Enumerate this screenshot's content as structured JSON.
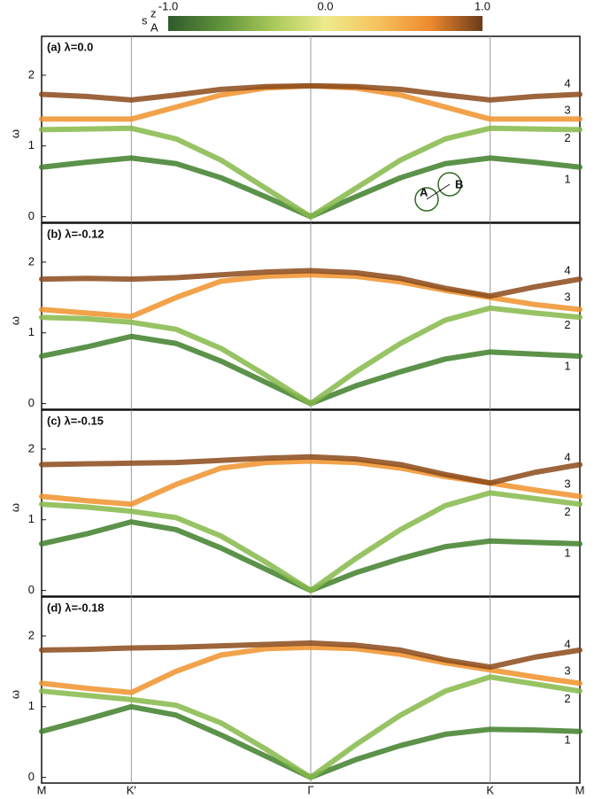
{
  "colorbar": {
    "label": "s",
    "label_sub": "A",
    "label_sup": "z",
    "lim": [
      -1,
      1
    ],
    "ticks": [
      {
        "value": -1,
        "label": "-1.0"
      },
      {
        "value": 0,
        "label": "0.0"
      },
      {
        "value": 1,
        "label": "1.0"
      }
    ],
    "colors": [
      "#2f5a2c",
      "#5f923a",
      "#a9c85a",
      "#eeeb8c",
      "#f6c25e",
      "#ee8a2e",
      "#6b3a1a"
    ]
  },
  "chart_data": [
    {
      "type": "line",
      "title": "(a) λ=0.0",
      "y_label": "ω",
      "annotations": [
        "A",
        "B"
      ],
      "x": [
        0,
        0.5,
        1,
        1.5,
        2,
        2.5,
        3,
        3.5,
        4,
        4.5,
        5,
        5.5,
        6
      ],
      "xlim": [
        0,
        6
      ],
      "ylim": [
        -0.08,
        2.55
      ],
      "yticks": [
        0,
        1,
        2
      ],
      "series": [
        {
          "name": "1",
          "color": "#3f7f2a",
          "values": [
            0.7,
            0.77,
            0.83,
            0.75,
            0.55,
            0.28,
            0,
            0.28,
            0.55,
            0.75,
            0.83,
            0.77,
            0.7
          ]
        },
        {
          "name": "2",
          "color": "#86b84a",
          "values": [
            1.23,
            1.24,
            1.25,
            1.1,
            0.8,
            0.4,
            0,
            0.4,
            0.8,
            1.1,
            1.25,
            1.24,
            1.23
          ]
        },
        {
          "name": "3",
          "color": "#f0922b",
          "values": [
            1.38,
            1.38,
            1.38,
            1.55,
            1.72,
            1.82,
            1.85,
            1.82,
            1.72,
            1.55,
            1.38,
            1.38,
            1.38
          ]
        },
        {
          "name": "4",
          "color": "#8b4a1a",
          "values": [
            1.73,
            1.7,
            1.65,
            1.72,
            1.8,
            1.84,
            1.85,
            1.84,
            1.8,
            1.72,
            1.65,
            1.7,
            1.73
          ]
        }
      ]
    },
    {
      "type": "line",
      "title": "(b) λ=-0.12",
      "y_label": "ω",
      "x": [
        0,
        0.5,
        1,
        1.5,
        2,
        2.5,
        3,
        3.5,
        4,
        4.5,
        5,
        5.5,
        6
      ],
      "xlim": [
        0,
        6
      ],
      "ylim": [
        -0.08,
        2.55
      ],
      "yticks": [
        0,
        1,
        2
      ],
      "series": [
        {
          "name": "1",
          "color": "#3f7f2a",
          "values": [
            0.67,
            0.8,
            0.95,
            0.85,
            0.6,
            0.3,
            0,
            0.25,
            0.45,
            0.63,
            0.73,
            0.7,
            0.67
          ]
        },
        {
          "name": "2",
          "color": "#86b84a",
          "values": [
            1.22,
            1.2,
            1.15,
            1.05,
            0.78,
            0.4,
            0,
            0.45,
            0.85,
            1.18,
            1.35,
            1.28,
            1.22
          ]
        },
        {
          "name": "3",
          "color": "#f0922b",
          "values": [
            1.33,
            1.28,
            1.23,
            1.5,
            1.73,
            1.8,
            1.82,
            1.8,
            1.72,
            1.6,
            1.5,
            1.4,
            1.33
          ]
        },
        {
          "name": "4",
          "color": "#8b4a1a",
          "values": [
            1.76,
            1.77,
            1.76,
            1.78,
            1.82,
            1.86,
            1.88,
            1.85,
            1.77,
            1.63,
            1.52,
            1.65,
            1.76
          ]
        }
      ]
    },
    {
      "type": "line",
      "title": "(c) λ=-0.15",
      "y_label": "ω",
      "x": [
        0,
        0.5,
        1,
        1.5,
        2,
        2.5,
        3,
        3.5,
        4,
        4.5,
        5,
        5.5,
        6
      ],
      "xlim": [
        0,
        6
      ],
      "ylim": [
        -0.08,
        2.55
      ],
      "yticks": [
        0,
        1,
        2
      ],
      "series": [
        {
          "name": "1",
          "color": "#3f7f2a",
          "values": [
            0.66,
            0.8,
            0.97,
            0.86,
            0.6,
            0.3,
            0,
            0.25,
            0.45,
            0.62,
            0.7,
            0.68,
            0.66
          ]
        },
        {
          "name": "2",
          "color": "#86b84a",
          "values": [
            1.22,
            1.18,
            1.12,
            1.03,
            0.77,
            0.4,
            0,
            0.45,
            0.86,
            1.2,
            1.38,
            1.3,
            1.22
          ]
        },
        {
          "name": "3",
          "color": "#f0922b",
          "values": [
            1.33,
            1.27,
            1.22,
            1.5,
            1.73,
            1.81,
            1.83,
            1.81,
            1.73,
            1.61,
            1.52,
            1.42,
            1.33
          ]
        },
        {
          "name": "4",
          "color": "#8b4a1a",
          "values": [
            1.78,
            1.79,
            1.8,
            1.81,
            1.84,
            1.87,
            1.89,
            1.86,
            1.78,
            1.64,
            1.52,
            1.67,
            1.78
          ]
        }
      ]
    },
    {
      "type": "line",
      "title": "(d) λ=-0.18",
      "y_label": "ω",
      "x": [
        0,
        0.5,
        1,
        1.5,
        2,
        2.5,
        3,
        3.5,
        4,
        4.5,
        5,
        5.5,
        6
      ],
      "xlim": [
        0,
        6
      ],
      "ylim": [
        -0.08,
        2.55
      ],
      "yticks": [
        0,
        1,
        2
      ],
      "xticks": [
        {
          "value": 0,
          "label": "M"
        },
        {
          "value": 1,
          "label": "K'"
        },
        {
          "value": 3,
          "label": "Γ"
        },
        {
          "value": 5,
          "label": "K"
        },
        {
          "value": 6,
          "label": "M"
        }
      ],
      "series": [
        {
          "name": "1",
          "color": "#3f7f2a",
          "values": [
            0.65,
            0.82,
            1.0,
            0.88,
            0.6,
            0.3,
            0,
            0.25,
            0.45,
            0.61,
            0.68,
            0.67,
            0.65
          ]
        },
        {
          "name": "2",
          "color": "#86b84a",
          "values": [
            1.22,
            1.16,
            1.1,
            1.02,
            0.77,
            0.4,
            0,
            0.46,
            0.88,
            1.22,
            1.42,
            1.32,
            1.22
          ]
        },
        {
          "name": "3",
          "color": "#f0922b",
          "values": [
            1.33,
            1.26,
            1.2,
            1.5,
            1.73,
            1.82,
            1.84,
            1.82,
            1.74,
            1.62,
            1.52,
            1.42,
            1.33
          ]
        },
        {
          "name": "4",
          "color": "#8b4a1a",
          "values": [
            1.8,
            1.81,
            1.83,
            1.84,
            1.86,
            1.88,
            1.9,
            1.87,
            1.8,
            1.66,
            1.56,
            1.7,
            1.8
          ]
        }
      ]
    }
  ]
}
